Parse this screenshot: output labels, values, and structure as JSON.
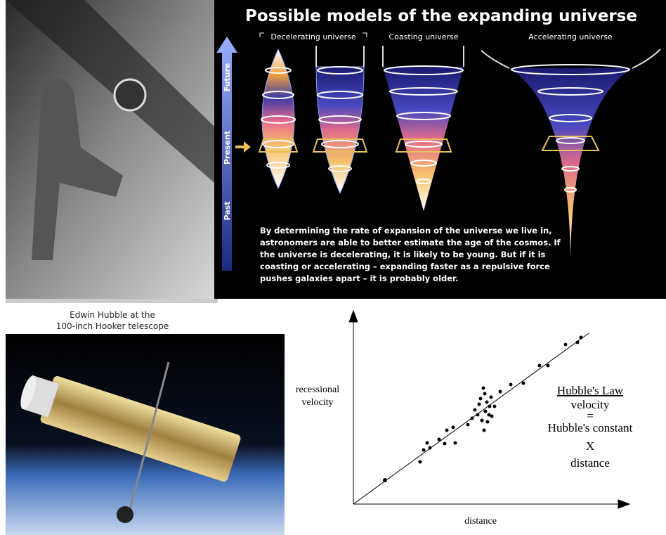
{
  "models": {
    "title": "Possible models of the expanding universe",
    "labels": [
      "Decelerating universe",
      "Coasting universe",
      "Accelerating universe"
    ],
    "time_axis": [
      "Future",
      "Present",
      "Past"
    ],
    "paragraph": [
      "By determining the rate of expansion of the universe we live in,",
      "astronomers are able to better estimate the age of the cosmos. If",
      "the universe is decelerating, it is likely to be young. But if it is",
      "coasting or accelerating – expanding faster as a repulsive force",
      "pushes galaxies apart – it is probably older."
    ]
  },
  "photo_caption": [
    "Edwin Hubble at the",
    "100-inch Hooker telescope"
  ],
  "hubble_plot": {
    "y_label": [
      "recessional",
      "velocity"
    ],
    "x_label": "distance",
    "law": [
      "Hubble's Law",
      "velocity",
      "=",
      "Hubble's constant",
      "X",
      "distance"
    ]
  }
}
